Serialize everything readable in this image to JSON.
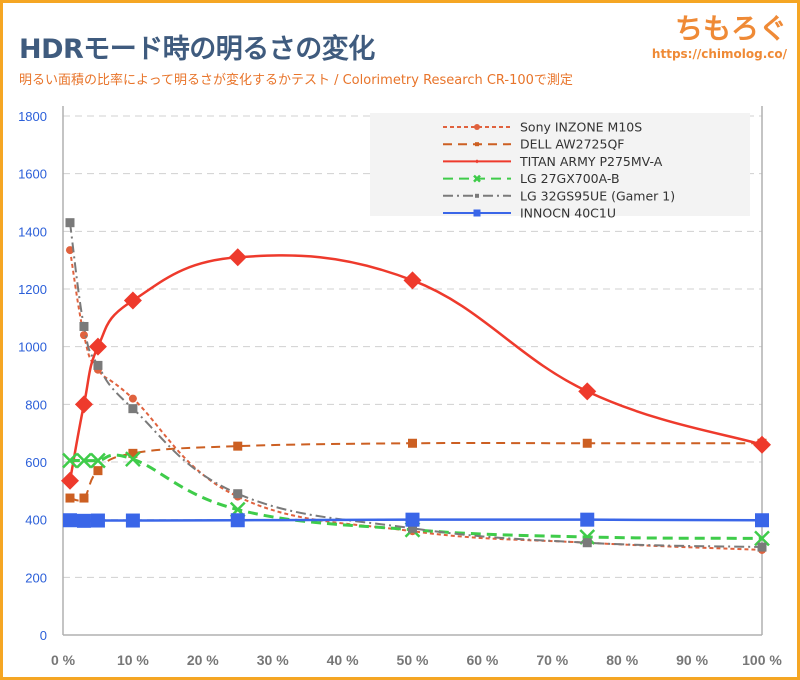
{
  "header": {
    "title": "HDRモード時の明るさの変化",
    "subtitle": "明るい面積の比率によって明るさが変化するかテスト / Colorimetry Research CR-100で測定",
    "logo_text": "ちもろぐ",
    "logo_url": "https://chimolog.co/"
  },
  "chart_data": {
    "type": "line",
    "title": "HDRモード時の明るさの変化",
    "xlabel": "",
    "ylabel": "",
    "x": [
      1,
      3,
      5,
      10,
      25,
      50,
      75,
      100
    ],
    "xlim": [
      0,
      100
    ],
    "ylim": [
      0,
      1800
    ],
    "xticks": [
      "0 %",
      "10 %",
      "20 %",
      "30 %",
      "40 %",
      "50 %",
      "60 %",
      "70 %",
      "80 %",
      "90 %",
      "100 %"
    ],
    "yticks": [
      "0",
      "200",
      "400",
      "600",
      "800",
      "1000",
      "1200",
      "1400",
      "1600",
      "1800"
    ],
    "grid": true,
    "legend_position": "top-right",
    "series": [
      {
        "name": "Sony INZONE M10S",
        "color": "#e0623e",
        "dash": "4 3",
        "marker": "circle",
        "values": [
          1335,
          1040,
          920,
          820,
          480,
          360,
          320,
          295
        ]
      },
      {
        "name": "DELL AW2725QF",
        "color": "#cc5f22",
        "dash": "9 6",
        "marker": "square",
        "values": [
          475,
          475,
          570,
          630,
          655,
          665,
          665,
          665
        ]
      },
      {
        "name": "TITAN ARMY P275MV-A",
        "color": "#ee3a2c",
        "dash": "",
        "marker": "diamond",
        "values": [
          535,
          800,
          1000,
          1160,
          1310,
          1230,
          845,
          660
        ]
      },
      {
        "name": "LG 27GX700A-B",
        "color": "#3fcc4a",
        "dash": "10 6",
        "marker": "x",
        "values": [
          605,
          605,
          605,
          610,
          435,
          365,
          340,
          335
        ]
      },
      {
        "name": "LG 32GS95UE (Gamer 1)",
        "color": "#7a7a7a",
        "dash": "10 4 2 4",
        "marker": "square",
        "values": [
          1430,
          1070,
          935,
          785,
          490,
          370,
          320,
          305
        ]
      },
      {
        "name": "INNOCN 40C1U",
        "color": "#3a66e8",
        "dash": "",
        "marker": "bigsquare",
        "values": [
          398,
          396,
          397,
          397,
          398,
          400,
          400,
          398
        ]
      }
    ]
  }
}
